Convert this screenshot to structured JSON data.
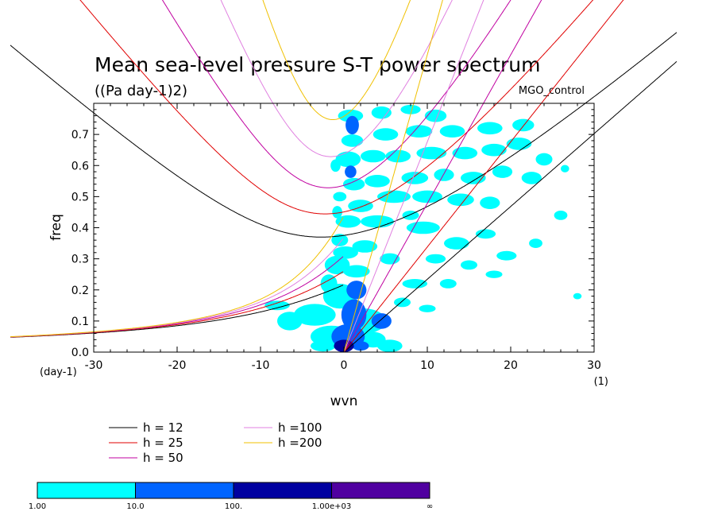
{
  "chart_data": {
    "type": "heatmap",
    "title": "Mean sea-level pressure S-T power spectrum",
    "subtitle": "((Pa day-1)2)",
    "annotation": "MGO_control",
    "xlabel": "wvn",
    "ylabel": "freq",
    "x_unit": "(1)",
    "y_unit": "(day-1)",
    "xlim": [
      -30,
      30
    ],
    "ylim": [
      0,
      0.8
    ],
    "xticks": [
      -30,
      -20,
      -10,
      0,
      10,
      20,
      30
    ],
    "xtick_labels": [
      "-30",
      "-20",
      "-10",
      "0",
      "10",
      "20",
      "30"
    ],
    "yticks": [
      0.0,
      0.1,
      0.2,
      0.3,
      0.4,
      0.5,
      0.6,
      0.7
    ],
    "ytick_labels": [
      "0.0",
      "0.1",
      "0.2",
      "0.3",
      "0.4",
      "0.5",
      "0.6",
      "0.7"
    ],
    "contour_levels": {
      "labels": [
        "1.00",
        "10.0",
        "100.",
        "1.00e+03",
        "∞"
      ],
      "colors": [
        "#00ffff",
        "#0064ff",
        "#0000a0",
        "#5000a0"
      ]
    },
    "dispersion_curves": {
      "legend": [
        {
          "label": "h = 12",
          "color": "#000000",
          "h": 12
        },
        {
          "label": "h = 25",
          "color": "#e00000",
          "h": 25
        },
        {
          "label": "h = 50",
          "color": "#c000a0",
          "h": 50
        },
        {
          "label": "h =100",
          "color": "#e080e0",
          "h": 100
        },
        {
          "label": "h =200",
          "color": "#f0c000",
          "h": 200
        }
      ]
    },
    "spectrum_blobs": [
      {
        "x": 0,
        "y": 0.02,
        "rx": 1.2,
        "ry": 0.02,
        "level": 3
      },
      {
        "x": 0.5,
        "y": 0.05,
        "rx": 2.0,
        "ry": 0.04,
        "level": 2
      },
      {
        "x": -1.5,
        "y": 0.05,
        "rx": 2.5,
        "ry": 0.035,
        "level": 1
      },
      {
        "x": 1.2,
        "y": 0.12,
        "rx": 1.5,
        "ry": 0.05,
        "level": 2
      },
      {
        "x": 1.0,
        "y": 0.73,
        "rx": 0.8,
        "ry": 0.03,
        "level": 2
      },
      {
        "x": 0.8,
        "y": 0.58,
        "rx": 0.7,
        "ry": 0.02,
        "level": 2
      },
      {
        "x": -0.5,
        "y": 0.18,
        "rx": 2.0,
        "ry": 0.04,
        "level": 1
      },
      {
        "x": 1.5,
        "y": 0.2,
        "rx": 1.2,
        "ry": 0.03,
        "level": 2
      },
      {
        "x": 2.5,
        "y": 0.1,
        "rx": 2.5,
        "ry": 0.04,
        "level": 1
      },
      {
        "x": 4.5,
        "y": 0.1,
        "rx": 1.2,
        "ry": 0.025,
        "level": 2
      },
      {
        "x": -3.5,
        "y": 0.12,
        "rx": 2.5,
        "ry": 0.035,
        "level": 1
      },
      {
        "x": -6.5,
        "y": 0.1,
        "rx": 1.5,
        "ry": 0.03,
        "level": 1
      },
      {
        "x": -8.0,
        "y": 0.15,
        "rx": 1.5,
        "ry": 0.015,
        "level": 1
      },
      {
        "x": 3.5,
        "y": 0.04,
        "rx": 1.5,
        "ry": 0.025,
        "level": 1
      },
      {
        "x": -0.8,
        "y": 0.28,
        "rx": 1.5,
        "ry": 0.03,
        "level": 1
      },
      {
        "x": -1.8,
        "y": 0.22,
        "rx": 1.0,
        "ry": 0.03,
        "level": 1
      },
      {
        "x": 1.5,
        "y": 0.26,
        "rx": 1.6,
        "ry": 0.02,
        "level": 1
      },
      {
        "x": 0.2,
        "y": 0.32,
        "rx": 1.5,
        "ry": 0.02,
        "level": 1
      },
      {
        "x": 2.5,
        "y": 0.34,
        "rx": 1.5,
        "ry": 0.02,
        "level": 1
      },
      {
        "x": -0.5,
        "y": 0.36,
        "rx": 1.0,
        "ry": 0.02,
        "level": 1
      },
      {
        "x": 5.5,
        "y": 0.3,
        "rx": 1.2,
        "ry": 0.018,
        "level": 1
      },
      {
        "x": 0.5,
        "y": 0.42,
        "rx": 1.5,
        "ry": 0.02,
        "level": 1
      },
      {
        "x": 4.0,
        "y": 0.42,
        "rx": 2.0,
        "ry": 0.02,
        "level": 1
      },
      {
        "x": 8.0,
        "y": 0.44,
        "rx": 1.0,
        "ry": 0.015,
        "level": 1
      },
      {
        "x": 9.5,
        "y": 0.4,
        "rx": 2.0,
        "ry": 0.02,
        "level": 1
      },
      {
        "x": 2.0,
        "y": 0.47,
        "rx": 1.5,
        "ry": 0.02,
        "level": 1
      },
      {
        "x": -0.5,
        "y": 0.5,
        "rx": 0.8,
        "ry": 0.015,
        "level": 1
      },
      {
        "x": 6.0,
        "y": 0.5,
        "rx": 2.0,
        "ry": 0.02,
        "level": 1
      },
      {
        "x": 10.0,
        "y": 0.5,
        "rx": 1.8,
        "ry": 0.02,
        "level": 1
      },
      {
        "x": 14.0,
        "y": 0.49,
        "rx": 1.6,
        "ry": 0.02,
        "level": 1
      },
      {
        "x": 17.5,
        "y": 0.48,
        "rx": 1.2,
        "ry": 0.02,
        "level": 1
      },
      {
        "x": 1.2,
        "y": 0.54,
        "rx": 1.3,
        "ry": 0.02,
        "level": 1
      },
      {
        "x": 4.0,
        "y": 0.55,
        "rx": 1.5,
        "ry": 0.02,
        "level": 1
      },
      {
        "x": 8.5,
        "y": 0.56,
        "rx": 1.6,
        "ry": 0.02,
        "level": 1
      },
      {
        "x": 12.0,
        "y": 0.57,
        "rx": 1.2,
        "ry": 0.02,
        "level": 1
      },
      {
        "x": 15.5,
        "y": 0.56,
        "rx": 1.5,
        "ry": 0.02,
        "level": 1
      },
      {
        "x": 19.0,
        "y": 0.58,
        "rx": 1.2,
        "ry": 0.02,
        "level": 1
      },
      {
        "x": 22.5,
        "y": 0.56,
        "rx": 1.2,
        "ry": 0.02,
        "level": 1
      },
      {
        "x": 0.5,
        "y": 0.62,
        "rx": 1.5,
        "ry": 0.025,
        "level": 1
      },
      {
        "x": 3.5,
        "y": 0.63,
        "rx": 1.5,
        "ry": 0.02,
        "level": 1
      },
      {
        "x": 6.5,
        "y": 0.63,
        "rx": 1.5,
        "ry": 0.02,
        "level": 1
      },
      {
        "x": 10.5,
        "y": 0.64,
        "rx": 1.8,
        "ry": 0.02,
        "level": 1
      },
      {
        "x": 14.5,
        "y": 0.64,
        "rx": 1.5,
        "ry": 0.02,
        "level": 1
      },
      {
        "x": 18.0,
        "y": 0.65,
        "rx": 1.5,
        "ry": 0.02,
        "level": 1
      },
      {
        "x": 21.0,
        "y": 0.67,
        "rx": 1.5,
        "ry": 0.02,
        "level": 1
      },
      {
        "x": 24.0,
        "y": 0.62,
        "rx": 1.0,
        "ry": 0.02,
        "level": 1
      },
      {
        "x": 1.0,
        "y": 0.68,
        "rx": 1.3,
        "ry": 0.02,
        "level": 1
      },
      {
        "x": 5.0,
        "y": 0.7,
        "rx": 1.5,
        "ry": 0.02,
        "level": 1
      },
      {
        "x": 9.0,
        "y": 0.71,
        "rx": 1.6,
        "ry": 0.02,
        "level": 1
      },
      {
        "x": 13.0,
        "y": 0.71,
        "rx": 1.5,
        "ry": 0.02,
        "level": 1
      },
      {
        "x": 17.5,
        "y": 0.72,
        "rx": 1.5,
        "ry": 0.02,
        "level": 1
      },
      {
        "x": 21.5,
        "y": 0.73,
        "rx": 1.3,
        "ry": 0.02,
        "level": 1
      },
      {
        "x": 0.8,
        "y": 0.76,
        "rx": 1.5,
        "ry": 0.02,
        "level": 1
      },
      {
        "x": 4.5,
        "y": 0.77,
        "rx": 1.2,
        "ry": 0.02,
        "level": 1
      },
      {
        "x": 8.0,
        "y": 0.78,
        "rx": 1.2,
        "ry": 0.015,
        "level": 1
      },
      {
        "x": 11.0,
        "y": 0.76,
        "rx": 1.3,
        "ry": 0.02,
        "level": 1
      },
      {
        "x": -0.8,
        "y": 0.45,
        "rx": 0.6,
        "ry": 0.02,
        "level": 1
      },
      {
        "x": -1.0,
        "y": 0.6,
        "rx": 0.6,
        "ry": 0.02,
        "level": 1
      },
      {
        "x": 13.5,
        "y": 0.35,
        "rx": 1.5,
        "ry": 0.02,
        "level": 1
      },
      {
        "x": 17.0,
        "y": 0.38,
        "rx": 1.2,
        "ry": 0.015,
        "level": 1
      },
      {
        "x": 11.0,
        "y": 0.3,
        "rx": 1.2,
        "ry": 0.015,
        "level": 1
      },
      {
        "x": 15.0,
        "y": 0.28,
        "rx": 1.0,
        "ry": 0.015,
        "level": 1
      },
      {
        "x": 19.5,
        "y": 0.31,
        "rx": 1.2,
        "ry": 0.015,
        "level": 1
      },
      {
        "x": 23.0,
        "y": 0.35,
        "rx": 0.8,
        "ry": 0.015,
        "level": 1
      },
      {
        "x": 8.5,
        "y": 0.22,
        "rx": 1.5,
        "ry": 0.015,
        "level": 1
      },
      {
        "x": 12.5,
        "y": 0.22,
        "rx": 1.0,
        "ry": 0.015,
        "level": 1
      },
      {
        "x": 18.0,
        "y": 0.25,
        "rx": 1.0,
        "ry": 0.012,
        "level": 1
      },
      {
        "x": 26.0,
        "y": 0.44,
        "rx": 0.8,
        "ry": 0.015,
        "level": 1
      },
      {
        "x": 10.0,
        "y": 0.14,
        "rx": 1.0,
        "ry": 0.012,
        "level": 1
      },
      {
        "x": 7.0,
        "y": 0.16,
        "rx": 1.0,
        "ry": 0.015,
        "level": 1
      },
      {
        "x": 5.5,
        "y": 0.02,
        "rx": 1.5,
        "ry": 0.02,
        "level": 1
      },
      {
        "x": -2.5,
        "y": 0.02,
        "rx": 1.5,
        "ry": 0.018,
        "level": 1
      },
      {
        "x": 2.0,
        "y": 0.02,
        "rx": 1.0,
        "ry": 0.015,
        "level": 2
      },
      {
        "x": 28.0,
        "y": 0.18,
        "rx": 0.5,
        "ry": 0.01,
        "level": 1
      },
      {
        "x": 26.5,
        "y": 0.59,
        "rx": 0.5,
        "ry": 0.012,
        "level": 1
      }
    ]
  }
}
